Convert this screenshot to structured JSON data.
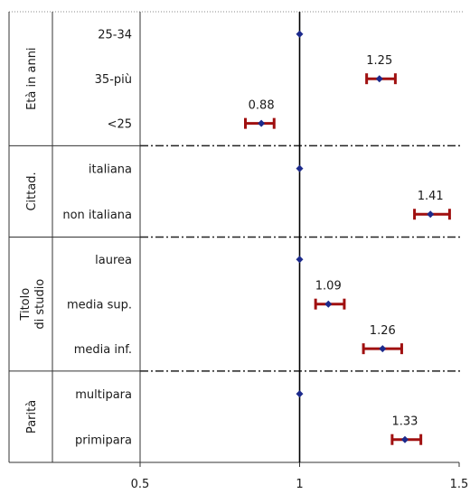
{
  "chart_data": {
    "type": "forest",
    "xlim": [
      0.5,
      1.5
    ],
    "x_ticks": [
      {
        "value": 0.5,
        "label": "0.5"
      },
      {
        "value": 1,
        "label": "1"
      },
      {
        "value": 1.5,
        "label": "1.5"
      }
    ],
    "reference_line": 1,
    "colors": {
      "interval": "#a01010",
      "point": "#1c2a8c",
      "reference": "#000000"
    },
    "groups": [
      {
        "label": "Età in anni",
        "rows": [
          {
            "label": "25-34",
            "value": 1.0,
            "low": 1.0,
            "high": 1.0,
            "value_label": ""
          },
          {
            "label": "35-più",
            "value": 1.25,
            "low": 1.21,
            "high": 1.3,
            "value_label": "1.25"
          },
          {
            "label": "<25",
            "value": 0.88,
            "low": 0.83,
            "high": 0.92,
            "value_label": "0.88"
          }
        ]
      },
      {
        "label": "Cittad.",
        "rows": [
          {
            "label": "italiana",
            "value": 1.0,
            "low": 1.0,
            "high": 1.0,
            "value_label": ""
          },
          {
            "label": "non italiana",
            "value": 1.41,
            "low": 1.36,
            "high": 1.47,
            "value_label": "1.41"
          }
        ]
      },
      {
        "label": "Titolo di studio",
        "label_lines": [
          "Titolo",
          "di studio"
        ],
        "rows": [
          {
            "label": "laurea",
            "value": 1.0,
            "low": 1.0,
            "high": 1.0,
            "value_label": ""
          },
          {
            "label": "media sup.",
            "value": 1.09,
            "low": 1.05,
            "high": 1.14,
            "value_label": "1.09"
          },
          {
            "label": "media inf.",
            "value": 1.26,
            "low": 1.2,
            "high": 1.32,
            "value_label": "1.26"
          }
        ]
      },
      {
        "label": "Parità",
        "rows": [
          {
            "label": "multipara",
            "value": 1.0,
            "low": 1.0,
            "high": 1.0,
            "value_label": ""
          },
          {
            "label": "primipara",
            "value": 1.33,
            "low": 1.29,
            "high": 1.38,
            "value_label": "1.33"
          }
        ]
      }
    ]
  }
}
